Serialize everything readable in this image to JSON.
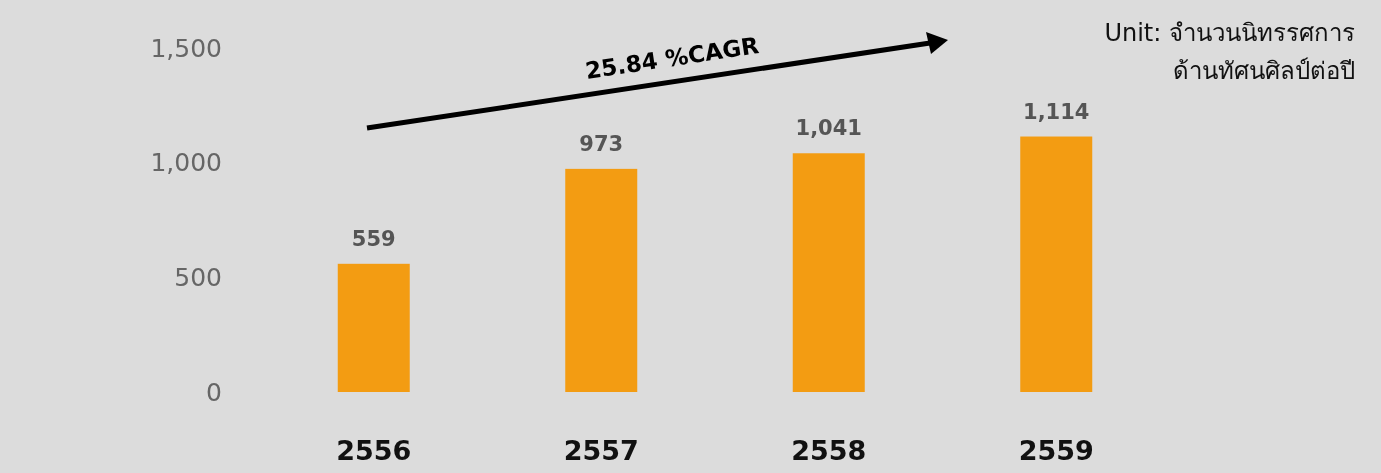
{
  "chart_data": {
    "type": "bar",
    "categories": [
      "2556",
      "2557",
      "2558",
      "2559"
    ],
    "values": [
      559,
      973,
      1041,
      1114
    ],
    "value_labels": [
      "559",
      "973",
      "1,041",
      "1,114"
    ],
    "color": "#f39c12",
    "ylim": [
      0,
      1500
    ],
    "yticks": [
      0,
      500,
      {
        "value": 1000,
        "label": "1,000"
      },
      {
        "value": 1500,
        "label": "1,500"
      }
    ],
    "annotations": [
      "25.84 %CAGR",
      "Unit: จำนวนนิทรรศการ\nด้านทัศนศิลป์ต่อปี"
    ]
  }
}
